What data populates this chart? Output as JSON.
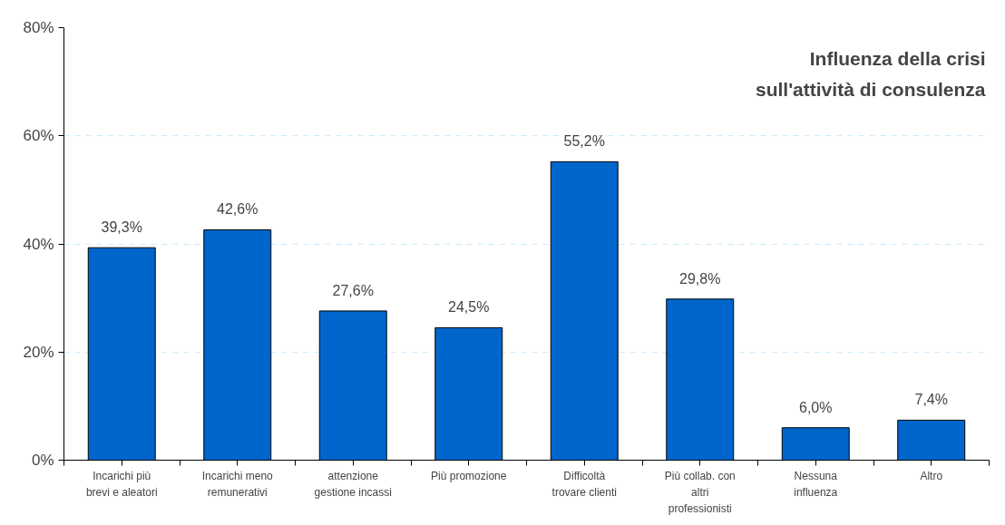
{
  "chart_data": {
    "type": "bar",
    "title": "Influenza della crisi\nsull'attività di consulenza",
    "categories": [
      "Incarichi più\nbrevi e aleatori",
      "Incarichi meno\nremunerativi",
      "attenzione\ngestione incassi",
      "Più promozione",
      "Difficoltà\ntrovare clienti",
      "Più collab. con\naltri\nprofessionisti",
      "Nessuna\ninfluenza",
      "Altro"
    ],
    "values": [
      39.3,
      42.6,
      27.6,
      24.5,
      55.2,
      29.8,
      6.0,
      7.4
    ],
    "value_labels": [
      "39,3%",
      "42,6%",
      "27,6%",
      "24,5%",
      "55,2%",
      "29,8%",
      "6,0%",
      "7,4%"
    ],
    "color": "#0066cc",
    "ylim": [
      0,
      80
    ],
    "yticks": [
      {
        "value": 0,
        "label": "0%"
      },
      {
        "value": 20,
        "label": "20%"
      },
      {
        "value": 40,
        "label": "40%"
      },
      {
        "value": 60,
        "label": "60%"
      },
      {
        "value": 80,
        "label": "80%"
      }
    ],
    "grid": "y"
  }
}
